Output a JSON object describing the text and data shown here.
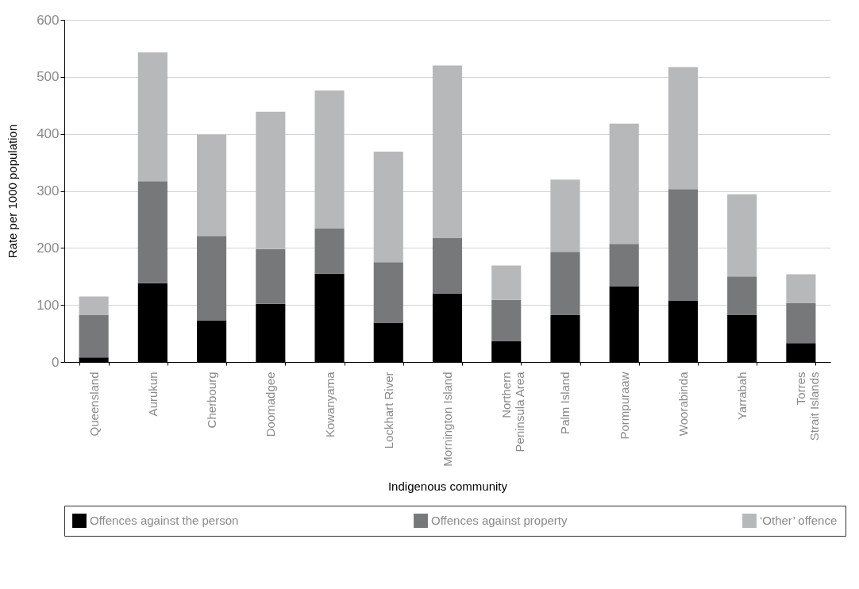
{
  "chart_data": {
    "type": "bar",
    "stacked": true,
    "xlabel": "Indigenous community",
    "ylabel": "Rate per 1000 population",
    "categories": [
      "Queensland",
      "Aurukun",
      "Cherbourg",
      "Doomadgee",
      "Kowanyama",
      "Lockhart River",
      "Mornington Island",
      "Northern Peninsula Area",
      "Palm Island",
      "Pormpuraaw",
      "Woorabinda",
      "Yarrabah",
      "Torres Strait Islands"
    ],
    "series": [
      {
        "name": "Offences against the person",
        "color": "#000000",
        "values": [
          8,
          138,
          73,
          102,
          155,
          69,
          120,
          37,
          82,
          133,
          108,
          82,
          33
        ]
      },
      {
        "name": "Offences against property",
        "color": "#77787a",
        "values": [
          75,
          179,
          148,
          96,
          79,
          106,
          97,
          72,
          111,
          74,
          195,
          68,
          70
        ]
      },
      {
        "name": "‘Other’ offence",
        "color": "#b7b8b9",
        "values": [
          32,
          226,
          178,
          241,
          242,
          194,
          303,
          60,
          127,
          211,
          214,
          144,
          51
        ]
      }
    ],
    "ylim": [
      0,
      600
    ],
    "yticks": [
      0,
      100,
      200,
      300,
      400,
      500,
      600
    ],
    "grid": "y",
    "legend": "bottom"
  }
}
